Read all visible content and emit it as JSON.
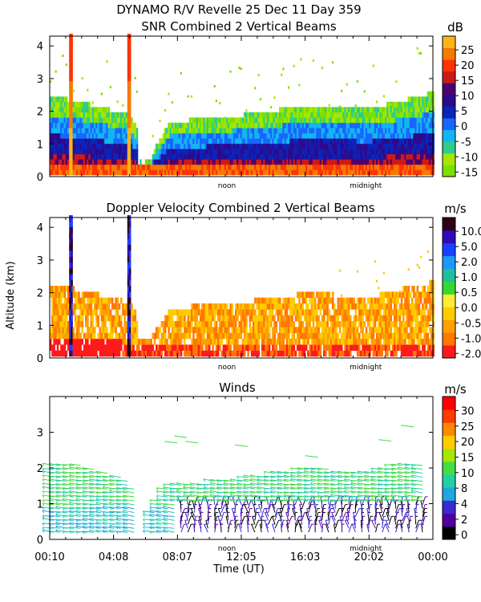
{
  "header": {
    "title": "DYNAMO R/V Revelle  25 Dec 11 Day 359",
    "subtitle": "SNR Combined 2 Vertical Beams"
  },
  "ylabel": "Altitude (km)",
  "xlabel": "Time (UT)",
  "colors": {
    "snr": [
      "#7be000",
      "#a6e600",
      "#2dcc8c",
      "#13b5f0",
      "#1966ff",
      "#0a23b8",
      "#2d0a8c",
      "#4c0070",
      "#cc1a1a",
      "#ff3300",
      "#f57a00",
      "#ffb31a"
    ],
    "dop": [
      "#ff1a1a",
      "#ff7700",
      "#ffa000",
      "#ffcc00",
      "#ffeb33",
      "#33d933",
      "#1fbf9e",
      "#1a99ff",
      "#1a40ff",
      "#300ab8",
      "#30001a"
    ],
    "wind": [
      "#000000",
      "#5000a0",
      "#3a2ad0",
      "#1fa6e0",
      "#20d0a8",
      "#44dd44",
      "#a6e600",
      "#ffcc00",
      "#ff8800",
      "#ff3b00",
      "#ff0000"
    ]
  },
  "chart_data": [
    {
      "type": "heatmap",
      "title": "SNR Combined 2 Vertical Beams",
      "ylabel": "",
      "xlim": [
        0,
        24
      ],
      "ylim": [
        0,
        4.3
      ],
      "yticks": [
        "0",
        "1",
        "2",
        "3",
        "4"
      ],
      "xmarks": [
        "noon",
        "midnight"
      ],
      "colorbar": {
        "unit": "dB",
        "ticks": [
          "25",
          "20",
          "15",
          "10",
          "5",
          "0",
          "-5",
          "-10",
          "-15"
        ]
      },
      "layer_top_km": [
        {
          "t": 0.0,
          "h": 2.4
        },
        {
          "t": 2.0,
          "h": 2.2
        },
        {
          "t": 5.0,
          "h": 1.8
        },
        {
          "t": 6.3,
          "h": 0.6
        },
        {
          "t": 7.5,
          "h": 1.6
        },
        {
          "t": 12.0,
          "h": 1.8
        },
        {
          "t": 16.0,
          "h": 2.1
        },
        {
          "t": 20.0,
          "h": 2.0
        },
        {
          "t": 24.0,
          "h": 2.5
        }
      ],
      "rain_times_h": [
        1.3,
        4.9
      ]
    },
    {
      "type": "heatmap",
      "title": "Doppler Velocity Combined 2 Vertical Beams",
      "ylabel": "Altitude (km)",
      "xlim": [
        0,
        24
      ],
      "ylim": [
        0,
        4.3
      ],
      "yticks": [
        "0",
        "1",
        "2",
        "3",
        "4"
      ],
      "xmarks": [
        "noon",
        "midnight"
      ],
      "colorbar": {
        "unit": "m/s",
        "ticks": [
          "10.0",
          "5.0",
          "2.0",
          "1.0",
          "0.5",
          "0.0",
          "-0.5",
          "-1.0",
          "-2.0"
        ]
      },
      "rain_times_h": [
        1.3,
        4.9
      ]
    },
    {
      "type": "scatter",
      "title": "Winds",
      "xlabel": "Time (UT)",
      "xlim": [
        0,
        24
      ],
      "ylim": [
        0,
        4
      ],
      "yticks": [
        "0",
        "1",
        "2",
        "3"
      ],
      "xticks": [
        "00:10",
        "04:08",
        "08:07",
        "12:05",
        "16:03",
        "20:02",
        "00:00"
      ],
      "xmarks": [
        "noon",
        "midnight"
      ],
      "colorbar": {
        "unit": "m/s",
        "ticks": [
          "30",
          "25",
          "20",
          "15",
          "10",
          "8",
          "4",
          "2",
          "0"
        ]
      }
    }
  ]
}
